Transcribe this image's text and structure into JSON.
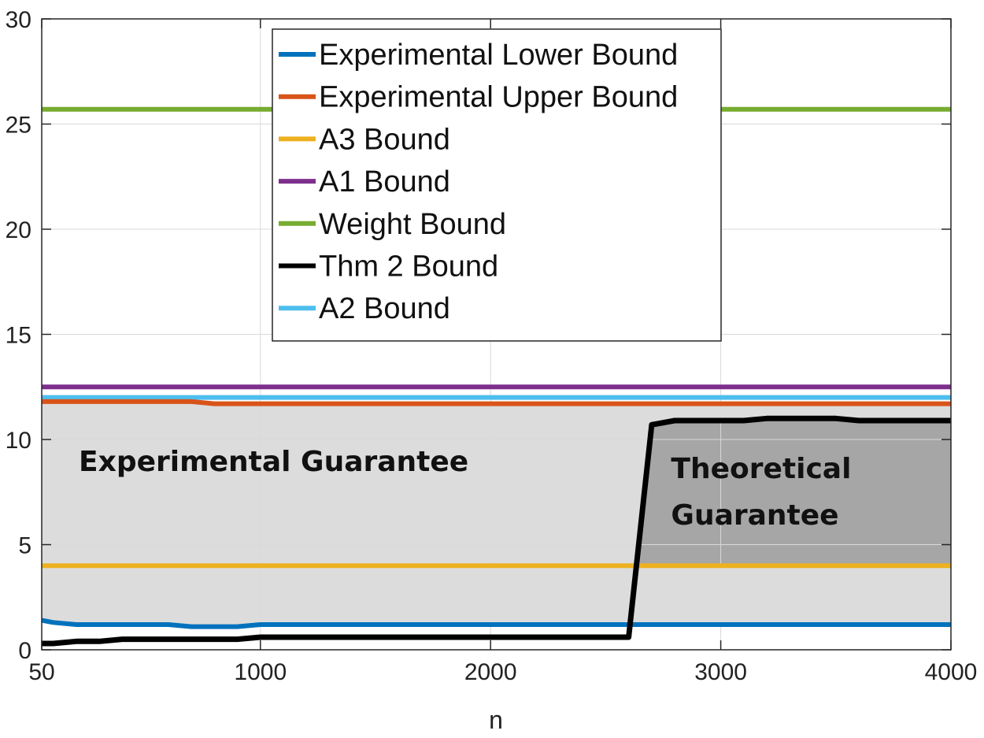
{
  "chart_data": {
    "type": "line",
    "xlabel": "n",
    "ylabel": "",
    "xlim": [
      50,
      4000
    ],
    "ylim": [
      0,
      30
    ],
    "x_ticks": [
      50,
      1000,
      2000,
      3000,
      4000
    ],
    "y_ticks": [
      0,
      5,
      10,
      15,
      20,
      25,
      30
    ],
    "x_tick_labels": [
      "50",
      "1000",
      "2000",
      "3000",
      "4000"
    ],
    "y_tick_labels": [
      "0",
      "5",
      "10",
      "15",
      "20",
      "25",
      "30"
    ],
    "grid": true,
    "legend_position": "top-center",
    "series": [
      {
        "name": "Experimental Lower Bound",
        "color": "#0072BD",
        "points": [
          [
            50,
            1.4
          ],
          [
            100,
            1.3
          ],
          [
            200,
            1.2
          ],
          [
            300,
            1.2
          ],
          [
            400,
            1.2
          ],
          [
            500,
            1.2
          ],
          [
            600,
            1.2
          ],
          [
            700,
            1.1
          ],
          [
            800,
            1.1
          ],
          [
            900,
            1.1
          ],
          [
            1000,
            1.2
          ],
          [
            1500,
            1.2
          ],
          [
            2000,
            1.2
          ],
          [
            2500,
            1.2
          ],
          [
            3000,
            1.2
          ],
          [
            3500,
            1.2
          ],
          [
            4000,
            1.2
          ]
        ]
      },
      {
        "name": "Experimental Upper Bound",
        "color": "#D95319",
        "points": [
          [
            50,
            11.8
          ],
          [
            500,
            11.8
          ],
          [
            700,
            11.8
          ],
          [
            800,
            11.7
          ],
          [
            1000,
            11.7
          ],
          [
            2000,
            11.7
          ],
          [
            3000,
            11.7
          ],
          [
            4000,
            11.7
          ]
        ]
      },
      {
        "name": "A3 Bound",
        "color": "#EDB120",
        "points": [
          [
            50,
            4.0
          ],
          [
            4000,
            4.0
          ]
        ]
      },
      {
        "name": "A1 Bound",
        "color": "#7E2F8E",
        "points": [
          [
            50,
            12.5
          ],
          [
            4000,
            12.5
          ]
        ]
      },
      {
        "name": "Weight Bound",
        "color": "#77AC30",
        "points": [
          [
            50,
            25.7
          ],
          [
            4000,
            25.7
          ]
        ]
      },
      {
        "name": "Thm 2 Bound",
        "color": "#000000",
        "points": [
          [
            50,
            0.3
          ],
          [
            100,
            0.3
          ],
          [
            200,
            0.4
          ],
          [
            300,
            0.4
          ],
          [
            400,
            0.5
          ],
          [
            500,
            0.5
          ],
          [
            600,
            0.5
          ],
          [
            700,
            0.5
          ],
          [
            800,
            0.5
          ],
          [
            900,
            0.5
          ],
          [
            1000,
            0.6
          ],
          [
            1500,
            0.6
          ],
          [
            2000,
            0.6
          ],
          [
            2500,
            0.6
          ],
          [
            2600,
            0.6
          ],
          [
            2700,
            10.7
          ],
          [
            2800,
            10.9
          ],
          [
            2900,
            10.9
          ],
          [
            3000,
            10.9
          ],
          [
            3100,
            10.9
          ],
          [
            3200,
            11.0
          ],
          [
            3300,
            11.0
          ],
          [
            3400,
            11.0
          ],
          [
            3500,
            11.0
          ],
          [
            3600,
            10.9
          ],
          [
            3700,
            10.9
          ],
          [
            3800,
            10.9
          ],
          [
            3900,
            10.9
          ],
          [
            4000,
            10.9
          ]
        ]
      },
      {
        "name": "A2 Bound",
        "color": "#4DBEEE",
        "points": [
          [
            50,
            12.0
          ],
          [
            4000,
            12.0
          ]
        ]
      }
    ],
    "regions": [
      {
        "label_lines": [
          "Experimental Guarantee"
        ],
        "color": "#DCDCDC",
        "x_range": [
          50,
          4000
        ],
        "lower_series": "Experimental Lower Bound",
        "upper_series": "Experimental Upper Bound",
        "label_anchor": [
          100,
          9.2
        ]
      },
      {
        "label_lines": [
          "Theoretical",
          "Guarantee"
        ],
        "color": "#A6A6A6",
        "x_range": [
          2630,
          4000
        ],
        "lower": 4.0,
        "upper_series": "Thm 2 Bound",
        "label_anchor": [
          2630,
          8.5
        ]
      }
    ]
  }
}
